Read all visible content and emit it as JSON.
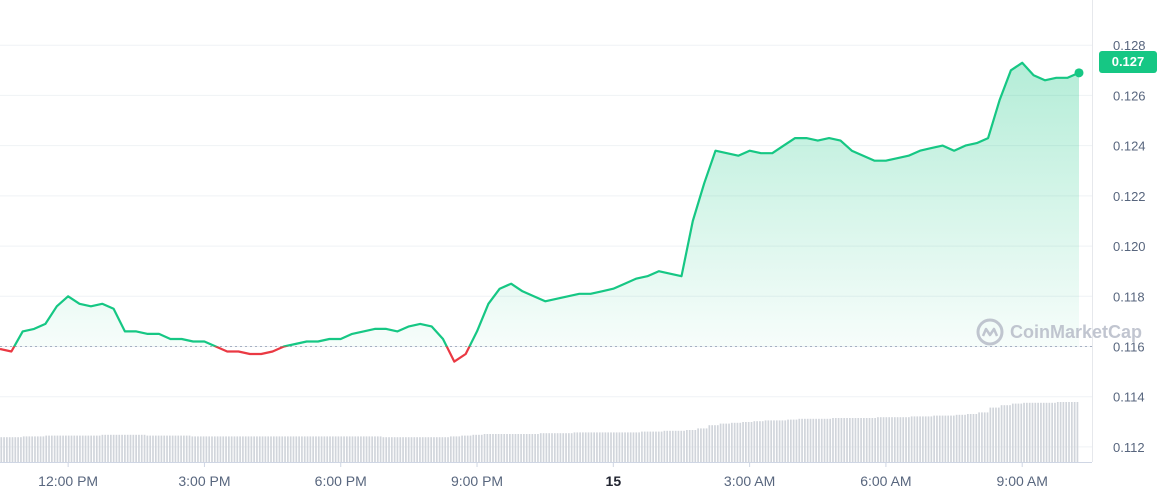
{
  "chart_data": {
    "type": "line",
    "title": "",
    "xlabel": "",
    "ylabel": "",
    "ylim": [
      0.1114,
      0.1298
    ],
    "x_tick_labels": [
      "12:00 PM",
      "3:00 PM",
      "6:00 PM",
      "9:00 PM",
      "15",
      "3:00 AM",
      "6:00 AM",
      "9:00 AM"
    ],
    "y_tick_labels": [
      "0.128",
      "0.126",
      "0.124",
      "0.122",
      "0.120",
      "0.118",
      "0.116",
      "0.114",
      "0.112"
    ],
    "reference_price": 0.116,
    "current_price_label": "0.127",
    "grid": true,
    "colors": {
      "up": "#16c784",
      "down": "#ea3943",
      "volume": "#d1d5db",
      "grid": "#eff2f5",
      "axis_text": "#58667e"
    },
    "series": [
      {
        "x": [
          "10:30",
          "10:45",
          "11:00",
          "11:15",
          "11:30",
          "11:45",
          "12:00",
          "12:15",
          "12:30",
          "12:45",
          "13:00",
          "13:15",
          "13:30",
          "13:45",
          "14:00",
          "14:15",
          "14:30",
          "14:45",
          "15:00",
          "15:15",
          "15:30",
          "15:45",
          "16:00",
          "16:15",
          "16:30",
          "16:45",
          "17:00",
          "17:15",
          "17:30",
          "17:45",
          "18:00",
          "18:15",
          "18:30",
          "18:45",
          "19:00",
          "19:15",
          "19:30",
          "19:45",
          "20:00",
          "20:15",
          "20:30",
          "20:45",
          "21:00",
          "21:15",
          "21:30",
          "21:45",
          "22:00",
          "22:15",
          "22:30",
          "22:45",
          "23:00",
          "23:15",
          "23:30",
          "23:45",
          "00:00",
          "00:15",
          "00:30",
          "00:45",
          "01:00",
          "01:15",
          "01:30",
          "01:45",
          "02:00",
          "02:15",
          "02:30",
          "02:45",
          "03:00",
          "03:15",
          "03:30",
          "03:45",
          "04:00",
          "04:15",
          "04:30",
          "04:45",
          "05:00",
          "05:15",
          "05:30",
          "05:45",
          "06:00",
          "06:15",
          "06:30",
          "06:45",
          "07:00",
          "07:15",
          "07:30",
          "07:45",
          "08:00",
          "08:15",
          "08:30",
          "08:45",
          "09:00",
          "09:15",
          "09:30",
          "09:45",
          "10:00",
          "10:15"
        ],
        "values": [
          0.1159,
          0.1158,
          0.1166,
          0.1167,
          0.1169,
          0.1176,
          0.118,
          0.1177,
          0.1176,
          0.1177,
          0.1175,
          0.1166,
          0.1166,
          0.1165,
          0.1165,
          0.1163,
          0.1163,
          0.1162,
          0.1162,
          0.116,
          0.1158,
          0.1158,
          0.1157,
          0.1157,
          0.1158,
          0.116,
          0.1161,
          0.1162,
          0.1162,
          0.1163,
          0.1163,
          0.1165,
          0.1166,
          0.1167,
          0.1167,
          0.1166,
          0.1168,
          0.1169,
          0.1168,
          0.1163,
          0.1154,
          0.1157,
          0.1166,
          0.1177,
          0.1183,
          0.1185,
          0.1182,
          0.118,
          0.1178,
          0.1179,
          0.118,
          0.1181,
          0.1181,
          0.1182,
          0.1183,
          0.1185,
          0.1187,
          0.1188,
          0.119,
          0.1189,
          0.1188,
          0.121,
          0.1225,
          0.1238,
          0.1237,
          0.1236,
          0.1238,
          0.1237,
          0.1237,
          0.124,
          0.1243,
          0.1243,
          0.1242,
          0.1243,
          0.1242,
          0.1238,
          0.1236,
          0.1234,
          0.1234,
          0.1235,
          0.1236,
          0.1238,
          0.1239,
          0.124,
          0.1238,
          0.124,
          0.1241,
          0.1243,
          0.1258,
          0.127,
          0.1273,
          0.1268,
          0.1266,
          0.1267,
          0.1267,
          0.1269
        ]
      }
    ],
    "volume_relative": [
      0.31,
      0.31,
      0.32,
      0.32,
      0.33,
      0.33,
      0.33,
      0.33,
      0.33,
      0.34,
      0.34,
      0.34,
      0.34,
      0.33,
      0.33,
      0.33,
      0.33,
      0.32,
      0.32,
      0.32,
      0.32,
      0.32,
      0.32,
      0.32,
      0.32,
      0.32,
      0.32,
      0.32,
      0.32,
      0.32,
      0.32,
      0.32,
      0.32,
      0.32,
      0.31,
      0.31,
      0.31,
      0.31,
      0.31,
      0.31,
      0.32,
      0.33,
      0.34,
      0.35,
      0.35,
      0.35,
      0.35,
      0.35,
      0.36,
      0.36,
      0.36,
      0.37,
      0.37,
      0.37,
      0.37,
      0.37,
      0.37,
      0.38,
      0.38,
      0.39,
      0.39,
      0.4,
      0.42,
      0.46,
      0.48,
      0.49,
      0.5,
      0.51,
      0.52,
      0.52,
      0.53,
      0.54,
      0.54,
      0.54,
      0.55,
      0.55,
      0.55,
      0.55,
      0.56,
      0.56,
      0.56,
      0.57,
      0.57,
      0.58,
      0.58,
      0.59,
      0.6,
      0.62,
      0.68,
      0.71,
      0.73,
      0.74,
      0.74,
      0.74,
      0.75,
      0.75
    ]
  },
  "watermark": {
    "text": "CoinMarketCap"
  }
}
